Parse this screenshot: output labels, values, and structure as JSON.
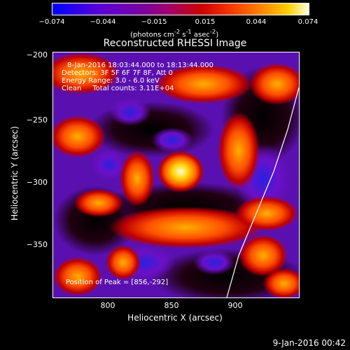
{
  "colorbar": {
    "ticks": [
      "−0.074",
      "−0.044",
      "−0.015",
      "0.015",
      "0.044",
      "0.074"
    ],
    "units_html": "(photons cm<sup>-2</sup> s<sup>-1</sup> asec<sup>-2</sup>)"
  },
  "plot": {
    "title": "Reconstructed RHESSI Image",
    "xlabel": "Heliocentric X (arcsec)",
    "ylabel": "Heliocentric Y (arcsec)",
    "xticks": [
      "800",
      "850",
      "900"
    ],
    "yticks": [
      "−200",
      "−250",
      "−300",
      "−350"
    ]
  },
  "overlay": {
    "line1": "8-Jan-2016 18:03:44.000 to 18:13:44.000",
    "line2": "Detectors: 3F 5F 6F 7F 8F, Att 0",
    "line3": "Energy Range: 3.0 - 6.0 keV",
    "line4": "Clean     Total counts: 3.11E+04",
    "peak": "Position of Peak = [856,-292]"
  },
  "footer": {
    "timestamp": "9-Jan-2016 00:42"
  },
  "chart_data": {
    "type": "heatmap",
    "title": "Reconstructed RHESSI Image",
    "xlabel": "Heliocentric X (arcsec)",
    "ylabel": "Heliocentric Y (arcsec)",
    "xlim": [
      760,
      950
    ],
    "ylim": [
      -395,
      -195
    ],
    "clim": [
      -0.074,
      0.074
    ],
    "peak": [
      856,
      -292
    ]
  }
}
